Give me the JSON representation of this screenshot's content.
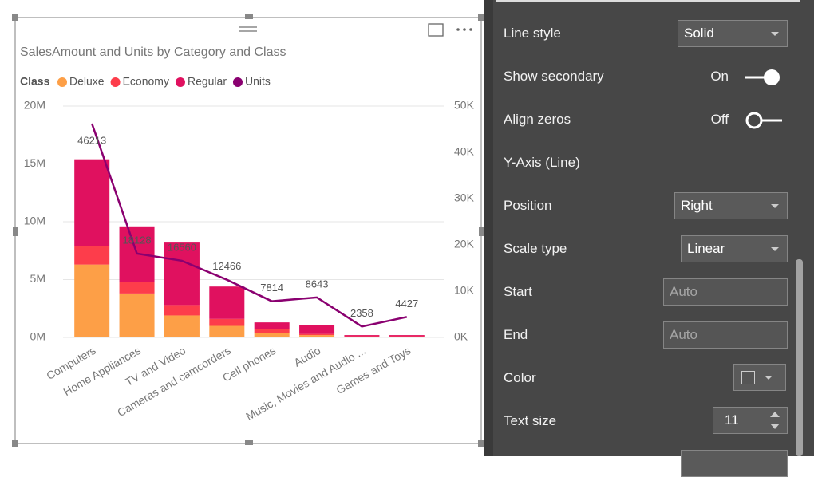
{
  "chart_data": {
    "type": "bar",
    "title": "SalesAmount and Units by Category and Class",
    "legend_title": "Class",
    "categories": [
      "Computers",
      "Home Appliances",
      "TV and Video",
      "Cameras and camcorders",
      "Cell phones",
      "Audio",
      "Music, Movies and Audio ...",
      "Games and Toys"
    ],
    "series": [
      {
        "name": "Deluxe",
        "color": "#fd9f47",
        "values": [
          6300000,
          3800000,
          1900000,
          1000000,
          400000,
          200000,
          50000,
          50000
        ]
      },
      {
        "name": "Economy",
        "color": "#fd3d4b",
        "values": [
          1600000,
          1000000,
          900000,
          600000,
          300000,
          100000,
          50000,
          50000
        ]
      },
      {
        "name": "Regular",
        "color": "#e0115f",
        "values": [
          7500000,
          4800000,
          5400000,
          2800000,
          600000,
          800000,
          100000,
          100000
        ]
      },
      {
        "name": "Units",
        "color": "#8a0070",
        "axis": "y2",
        "type": "line",
        "values": [
          46213,
          18128,
          16560,
          12466,
          7814,
          8643,
          2358,
          4427
        ]
      }
    ],
    "stacked": true,
    "ylim": [
      0,
      20000000
    ],
    "yticks": [
      {
        "value": 0,
        "label": "0M"
      },
      {
        "value": 5000000,
        "label": "5M"
      },
      {
        "value": 10000000,
        "label": "10M"
      },
      {
        "value": 15000000,
        "label": "15M"
      },
      {
        "value": 20000000,
        "label": "20M"
      }
    ],
    "y2lim": [
      0,
      50000
    ],
    "y2ticks": [
      {
        "value": 0,
        "label": "0K"
      },
      {
        "value": 10000,
        "label": "10K"
      },
      {
        "value": 20000,
        "label": "20K"
      },
      {
        "value": 30000,
        "label": "30K"
      },
      {
        "value": 40000,
        "label": "40K"
      },
      {
        "value": 50000,
        "label": "50K"
      }
    ],
    "grid": true,
    "legend": "top-left"
  },
  "panel": {
    "line_style": {
      "label": "Line style",
      "value": "Solid"
    },
    "show_secondary": {
      "label": "Show secondary",
      "value": "On"
    },
    "align_zeros": {
      "label": "Align zeros",
      "value": "Off"
    },
    "section": "Y-Axis (Line)",
    "position": {
      "label": "Position",
      "value": "Right"
    },
    "scale_type": {
      "label": "Scale type",
      "value": "Linear"
    },
    "start": {
      "label": "Start",
      "placeholder": "Auto"
    },
    "end": {
      "label": "End",
      "placeholder": "Auto"
    },
    "color": {
      "label": "Color"
    },
    "text_size": {
      "label": "Text size",
      "value": "11"
    }
  }
}
